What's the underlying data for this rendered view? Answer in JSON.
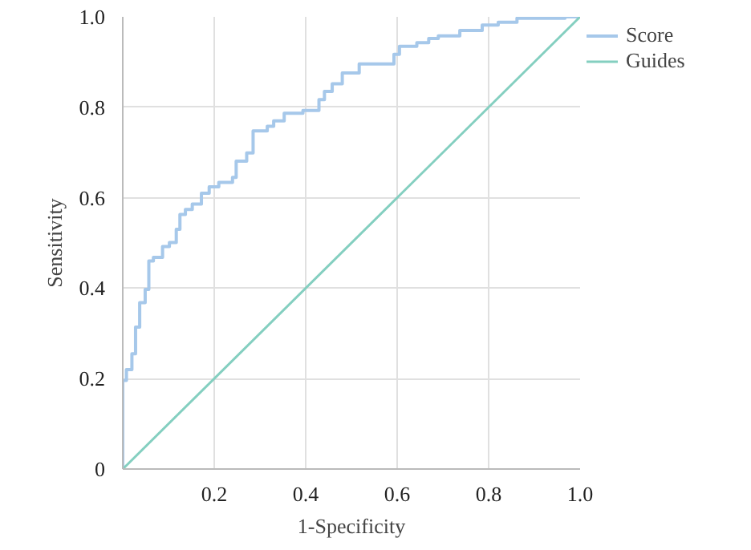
{
  "chart_data": {
    "type": "step",
    "xlabel": "1-Specificity",
    "ylabel": "Sensitivity",
    "xlim": [
      0,
      1
    ],
    "ylim": [
      0,
      1
    ],
    "xticks": [
      {
        "value": 0,
        "label": null
      },
      0.2,
      0.4,
      0.6,
      0.8,
      {
        "value": 1,
        "label": "1.0"
      }
    ],
    "yticks": [
      0,
      0.2,
      0.4,
      0.6,
      0.8,
      {
        "value": 1,
        "label": "1.0"
      }
    ],
    "grid": true,
    "legend": "right",
    "series": [
      {
        "name": "Score",
        "color": "#a6c8ea",
        "x": [
          0,
          0,
          0.008,
          0.02,
          0.028,
          0.037,
          0.049,
          0.057,
          0.067,
          0.087,
          0.102,
          0.117,
          0.125,
          0.137,
          0.152,
          0.172,
          0.189,
          0.21,
          0.24,
          0.248,
          0.271,
          0.285,
          0.316,
          0.33,
          0.353,
          0.394,
          0.429,
          0.441,
          0.458,
          0.48,
          0.517,
          0.593,
          0.605,
          0.643,
          0.669,
          0.69,
          0.737,
          0.786,
          0.821,
          0.862,
          0.967,
          1.0
        ],
        "values": [
          0,
          0.196,
          0.22,
          0.255,
          0.314,
          0.368,
          0.397,
          0.46,
          0.468,
          0.492,
          0.501,
          0.53,
          0.563,
          0.574,
          0.586,
          0.61,
          0.624,
          0.634,
          0.645,
          0.681,
          0.699,
          0.748,
          0.758,
          0.77,
          0.787,
          0.793,
          0.817,
          0.835,
          0.852,
          0.876,
          0.896,
          0.917,
          0.935,
          0.943,
          0.952,
          0.958,
          0.97,
          0.982,
          0.988,
          0.997,
          1.0,
          1.0
        ]
      },
      {
        "name": "Guides",
        "color": "#84cfc0",
        "type": "line",
        "x": [
          0,
          1
        ],
        "values": [
          0,
          1
        ]
      }
    ]
  }
}
